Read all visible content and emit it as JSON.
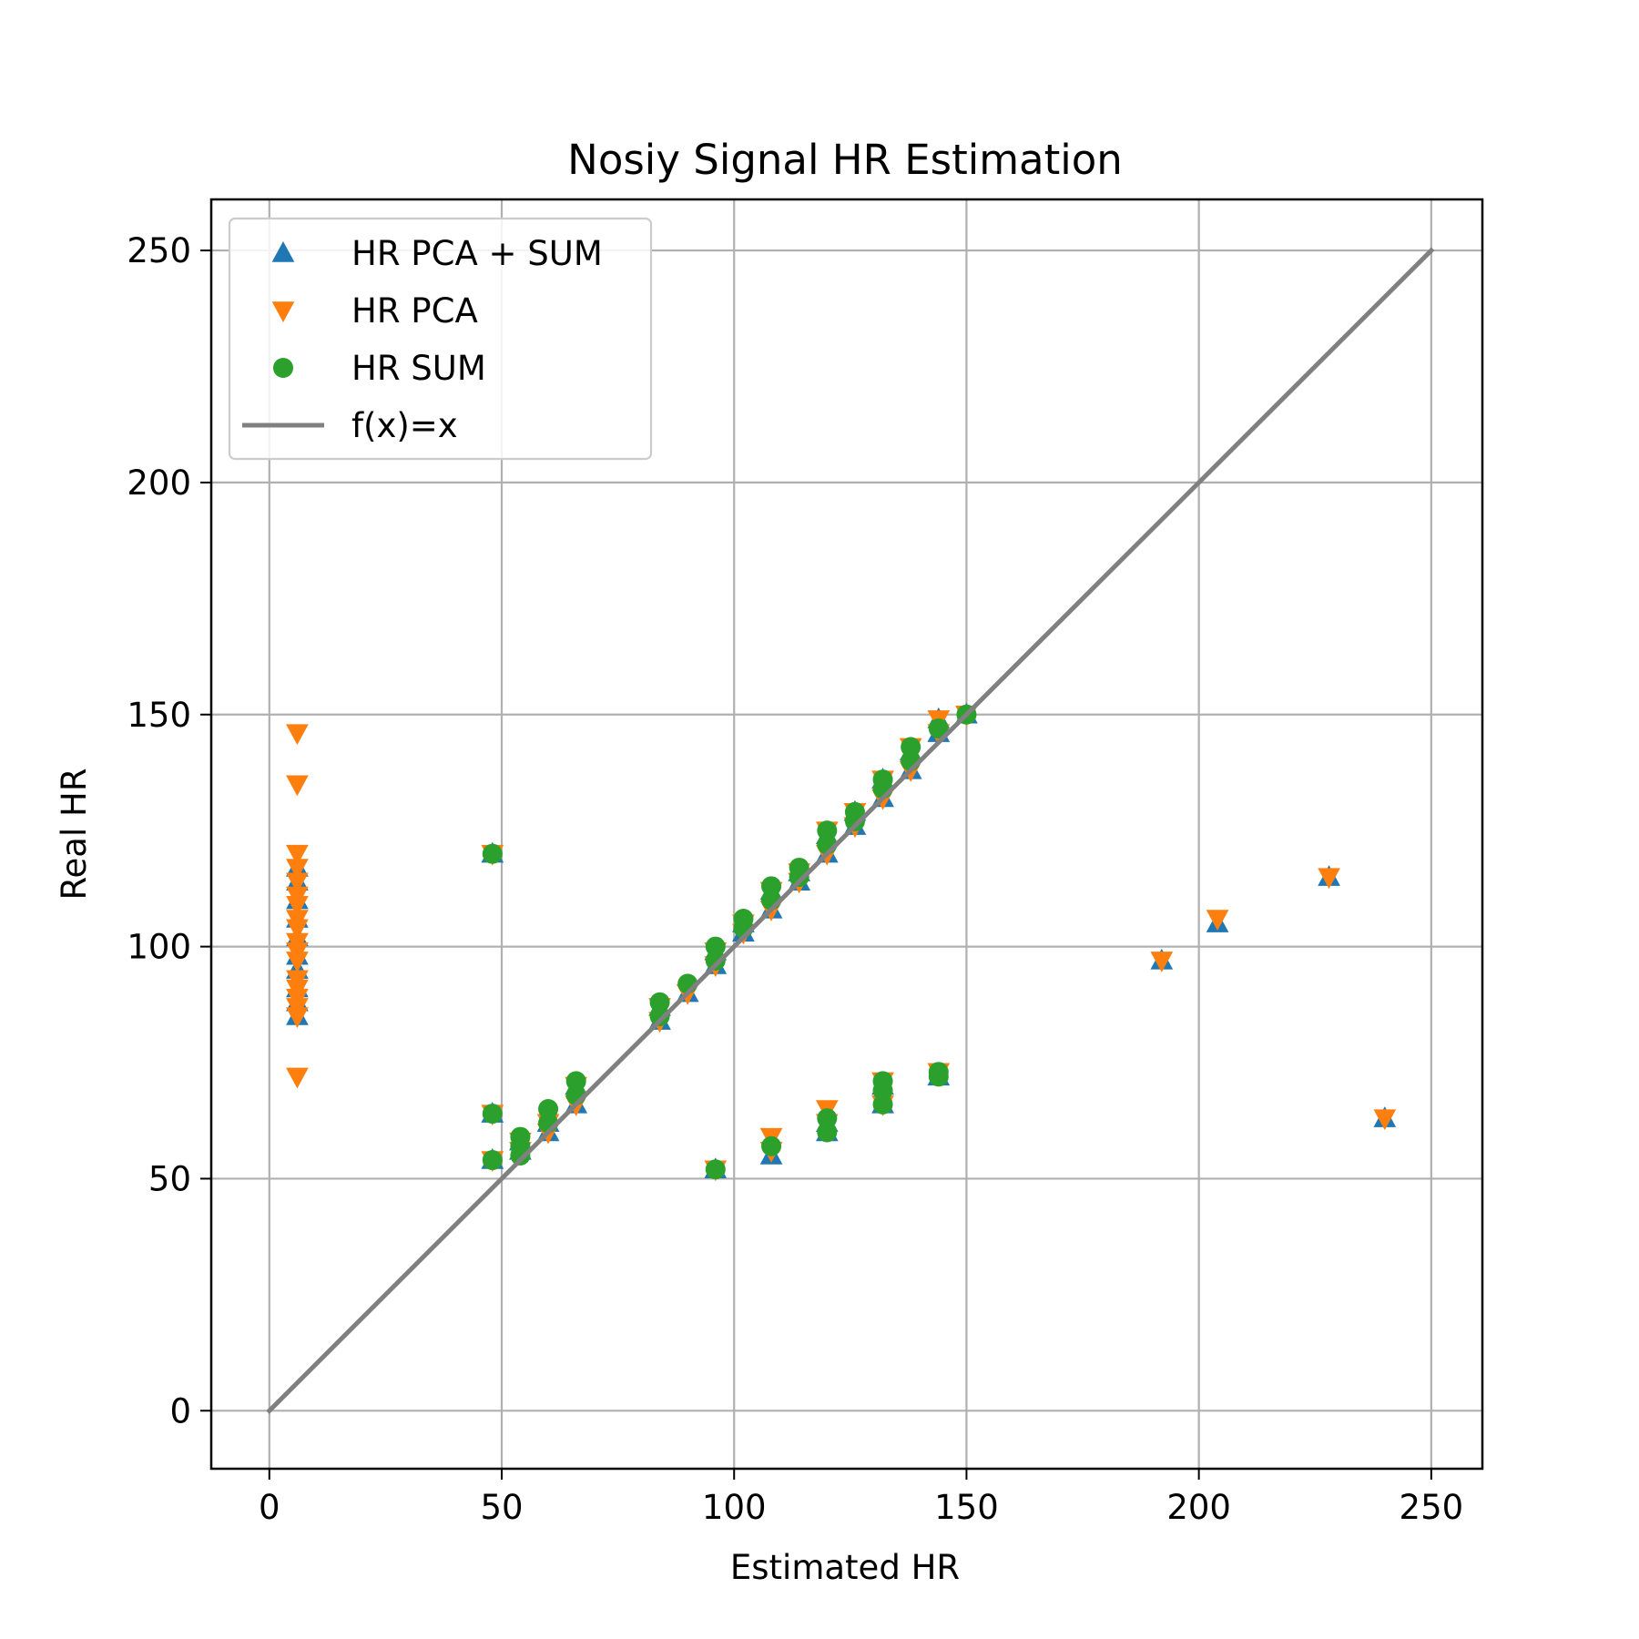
{
  "chart_data": {
    "type": "scatter",
    "title": "Nosiy Signal HR Estimation",
    "xlabel": "Estimated HR",
    "ylabel": "Real HR",
    "xlim": [
      -12.5,
      261
    ],
    "ylim": [
      -12.5,
      261
    ],
    "xticks": [
      0,
      50,
      100,
      150,
      200,
      250
    ],
    "yticks": [
      0,
      50,
      100,
      150,
      200,
      250
    ],
    "grid": true,
    "legend_position": "upper-left",
    "colors": {
      "pca_sum": "#1f77b4",
      "pca": "#ff7f0e",
      "sum": "#2ca02c",
      "line": "#808080"
    },
    "series": [
      {
        "name": "HR PCA + SUM",
        "marker": "triangle-up",
        "color": "#1f77b4",
        "points": [
          [
            6,
            85
          ],
          [
            6,
            88
          ],
          [
            6,
            91
          ],
          [
            6,
            95
          ],
          [
            6,
            98
          ],
          [
            6,
            102
          ],
          [
            6,
            106
          ],
          [
            6,
            110
          ],
          [
            6,
            114
          ],
          [
            6,
            117
          ],
          [
            48,
            54
          ],
          [
            48,
            64
          ],
          [
            48,
            120
          ],
          [
            54,
            56
          ],
          [
            54,
            58
          ],
          [
            60,
            60
          ],
          [
            60,
            62
          ],
          [
            66,
            66
          ],
          [
            66,
            70
          ],
          [
            84,
            84
          ],
          [
            84,
            87
          ],
          [
            90,
            90
          ],
          [
            96,
            52
          ],
          [
            96,
            96
          ],
          [
            96,
            99
          ],
          [
            102,
            103
          ],
          [
            102,
            105
          ],
          [
            108,
            55
          ],
          [
            108,
            108
          ],
          [
            108,
            112
          ],
          [
            114,
            114
          ],
          [
            114,
            116
          ],
          [
            120,
            60
          ],
          [
            120,
            62
          ],
          [
            120,
            120
          ],
          [
            120,
            124
          ],
          [
            126,
            126
          ],
          [
            126,
            129
          ],
          [
            132,
            66
          ],
          [
            132,
            70
          ],
          [
            132,
            132
          ],
          [
            132,
            136
          ],
          [
            138,
            138
          ],
          [
            138,
            142
          ],
          [
            144,
            72
          ],
          [
            144,
            146
          ],
          [
            144,
            149
          ],
          [
            150,
            150
          ],
          [
            192,
            97
          ],
          [
            204,
            105
          ],
          [
            228,
            115
          ],
          [
            240,
            63
          ]
        ]
      },
      {
        "name": "HR PCA",
        "marker": "triangle-down",
        "color": "#ff7f0e",
        "points": [
          [
            6,
            72
          ],
          [
            6,
            85
          ],
          [
            6,
            87
          ],
          [
            6,
            89
          ],
          [
            6,
            91
          ],
          [
            6,
            93
          ],
          [
            6,
            97
          ],
          [
            6,
            99
          ],
          [
            6,
            101
          ],
          [
            6,
            104
          ],
          [
            6,
            106
          ],
          [
            6,
            109
          ],
          [
            6,
            111
          ],
          [
            6,
            114
          ],
          [
            6,
            117
          ],
          [
            6,
            120
          ],
          [
            6,
            135
          ],
          [
            6,
            146
          ],
          [
            48,
            54
          ],
          [
            48,
            64
          ],
          [
            48,
            120
          ],
          [
            54,
            56
          ],
          [
            54,
            58
          ],
          [
            60,
            60
          ],
          [
            60,
            62
          ],
          [
            66,
            66
          ],
          [
            66,
            70
          ],
          [
            84,
            84
          ],
          [
            84,
            87
          ],
          [
            90,
            90
          ],
          [
            96,
            52
          ],
          [
            96,
            96
          ],
          [
            96,
            99
          ],
          [
            102,
            103
          ],
          [
            102,
            105
          ],
          [
            108,
            56
          ],
          [
            108,
            59
          ],
          [
            108,
            108
          ],
          [
            108,
            112
          ],
          [
            114,
            114
          ],
          [
            114,
            116
          ],
          [
            120,
            62
          ],
          [
            120,
            65
          ],
          [
            120,
            120
          ],
          [
            120,
            125
          ],
          [
            126,
            126
          ],
          [
            126,
            129
          ],
          [
            132,
            66
          ],
          [
            132,
            71
          ],
          [
            132,
            132
          ],
          [
            132,
            136
          ],
          [
            138,
            138
          ],
          [
            138,
            143
          ],
          [
            144,
            73
          ],
          [
            144,
            146
          ],
          [
            144,
            149
          ],
          [
            150,
            150
          ],
          [
            192,
            97
          ],
          [
            204,
            106
          ],
          [
            228,
            115
          ],
          [
            240,
            63
          ]
        ]
      },
      {
        "name": "HR SUM",
        "marker": "circle",
        "color": "#2ca02c",
        "points": [
          [
            48,
            54
          ],
          [
            48,
            64
          ],
          [
            48,
            120
          ],
          [
            54,
            55
          ],
          [
            54,
            57
          ],
          [
            54,
            59
          ],
          [
            60,
            62
          ],
          [
            60,
            65
          ],
          [
            66,
            68
          ],
          [
            66,
            71
          ],
          [
            84,
            85
          ],
          [
            84,
            88
          ],
          [
            90,
            92
          ],
          [
            96,
            52
          ],
          [
            96,
            97
          ],
          [
            96,
            100
          ],
          [
            102,
            104
          ],
          [
            102,
            106
          ],
          [
            108,
            57
          ],
          [
            108,
            110
          ],
          [
            108,
            113
          ],
          [
            114,
            115
          ],
          [
            114,
            117
          ],
          [
            120,
            60
          ],
          [
            120,
            63
          ],
          [
            120,
            122
          ],
          [
            120,
            125
          ],
          [
            126,
            127
          ],
          [
            126,
            129
          ],
          [
            132,
            66
          ],
          [
            132,
            69
          ],
          [
            132,
            71
          ],
          [
            132,
            134
          ],
          [
            132,
            136
          ],
          [
            138,
            140
          ],
          [
            138,
            143
          ],
          [
            144,
            72
          ],
          [
            144,
            73
          ],
          [
            144,
            147
          ],
          [
            150,
            150
          ]
        ]
      },
      {
        "name": "f(x)=x",
        "marker": "line",
        "color": "#808080",
        "points": [
          [
            0,
            0
          ],
          [
            250,
            250
          ]
        ]
      }
    ]
  }
}
